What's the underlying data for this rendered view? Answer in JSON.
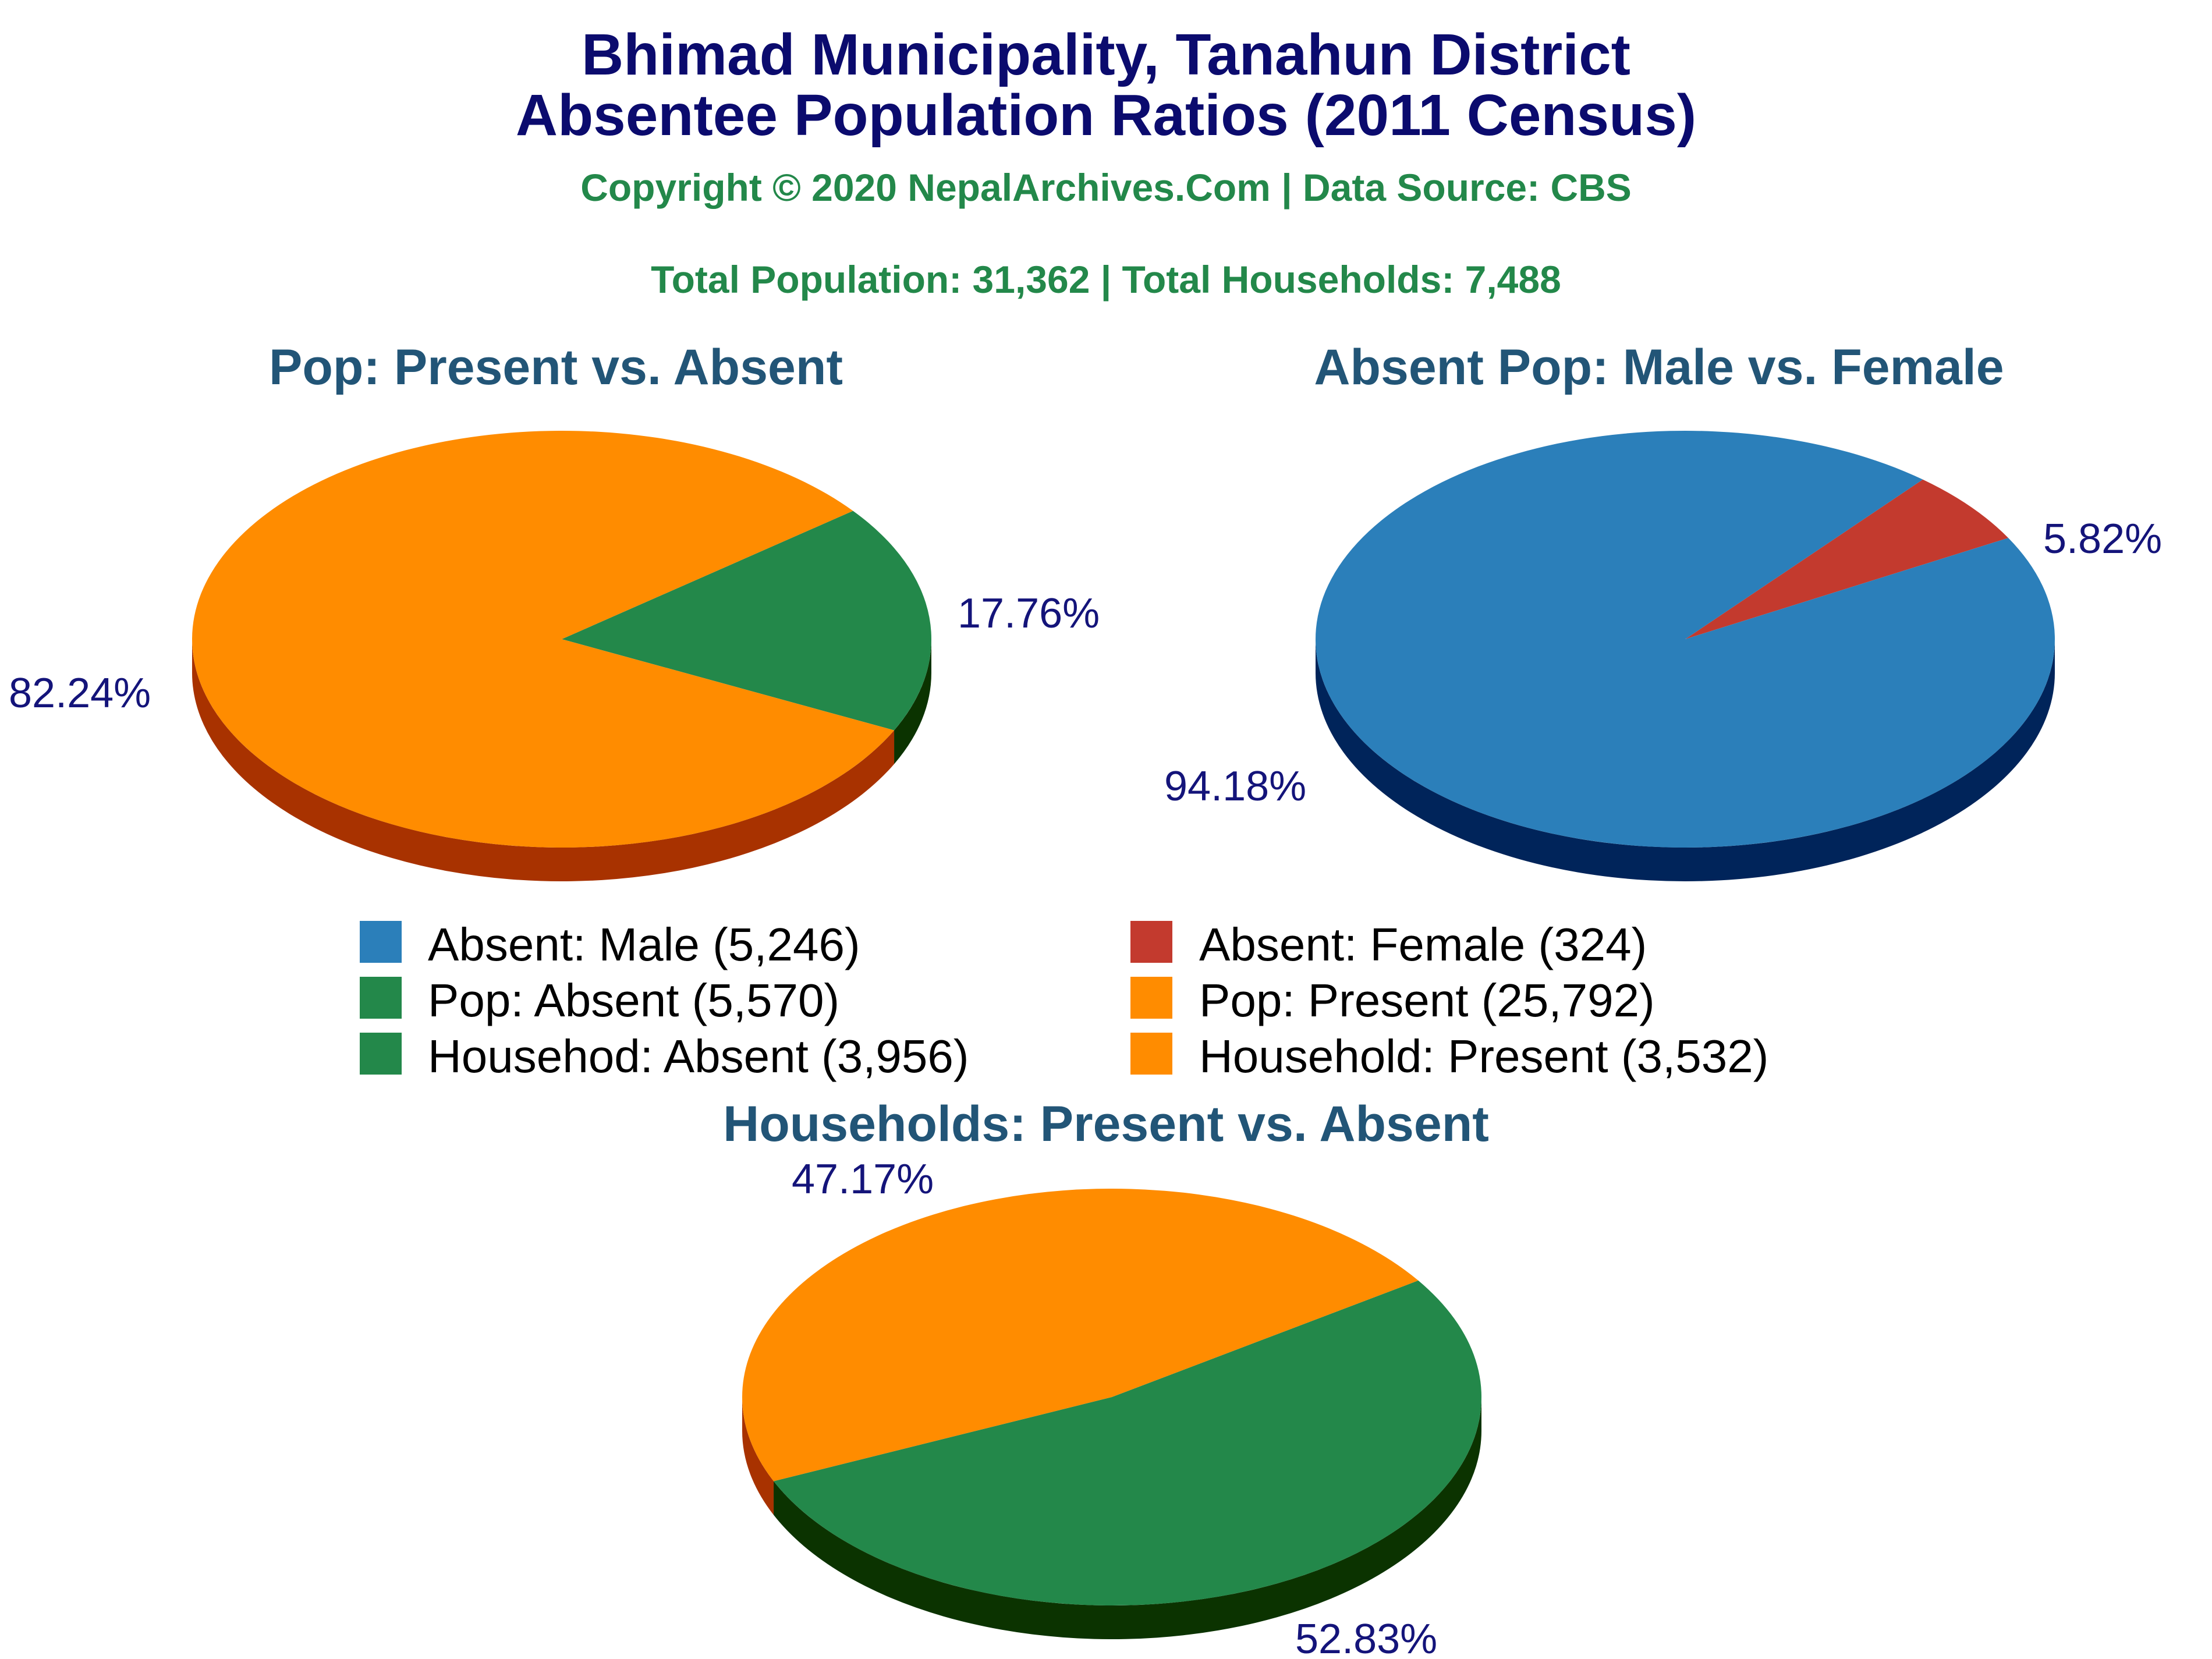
{
  "title_line1": "Bhimad Municipality, Tanahun District",
  "title_line2": "Absentee Population Ratios (2011 Census)",
  "copyright": "Copyright © 2020 NepalArchives.Com | Data Source: CBS",
  "totals": "Total Population: 31,362 | Total Households: 7,488",
  "colors": {
    "present": "#ff8c00",
    "present_side": "#a83200",
    "absent": "#23884a",
    "absent_side": "#0b3300",
    "male": "#2b7fba",
    "male_side": "#00245a",
    "female": "#c33a2e",
    "female_side": "#6e1a10"
  },
  "legend": [
    {
      "label": "Absent: Male (5,246)",
      "color": "#2b7fba"
    },
    {
      "label": "Absent: Female (324)",
      "color": "#c33a2e"
    },
    {
      "label": "Pop: Absent (5,570)",
      "color": "#23884a"
    },
    {
      "label": "Pop: Present (25,792)",
      "color": "#ff8c00"
    },
    {
      "label": "Househod: Absent (3,956)",
      "color": "#23884a"
    },
    {
      "label": "Household: Present (3,532)",
      "color": "#ff8c00"
    }
  ],
  "chart_data": [
    {
      "type": "pie",
      "title": "Pop: Present vs. Absent",
      "slices": [
        {
          "name": "Pop: Absent",
          "value": 5570,
          "label": "17.76%",
          "color": "#23884a",
          "side": "#0b3300"
        },
        {
          "name": "Pop: Present",
          "value": 25792,
          "label": "82.24%",
          "color": "#ff8c00",
          "side": "#a83200"
        }
      ]
    },
    {
      "type": "pie",
      "title": "Absent Pop: Male vs. Female",
      "slices": [
        {
          "name": "Absent: Female",
          "value": 324,
          "label": "5.82%",
          "color": "#c33a2e",
          "side": "#6e1a10"
        },
        {
          "name": "Absent: Male",
          "value": 5246,
          "label": "94.18%",
          "color": "#2b7fba",
          "side": "#00245a"
        }
      ]
    },
    {
      "type": "pie",
      "title": "Households: Present vs. Absent",
      "slices": [
        {
          "name": "Househod: Absent",
          "value": 3956,
          "label": "52.83%",
          "color": "#23884a",
          "side": "#0b3300"
        },
        {
          "name": "Household: Present",
          "value": 3532,
          "label": "47.17%",
          "color": "#ff8c00",
          "side": "#a83200"
        }
      ]
    }
  ]
}
